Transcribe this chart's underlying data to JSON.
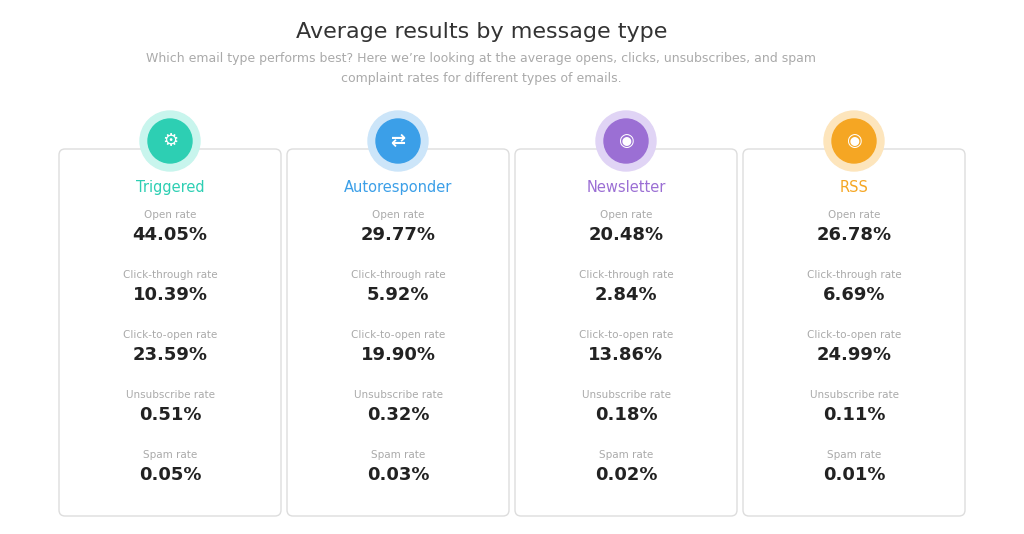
{
  "title": "Average results by message type",
  "subtitle": "Which email type performs best? Here we’re looking at the average opens, clicks, unsubscribes, and spam\ncomplaint rates for different types of emails.",
  "background_color": "#ffffff",
  "title_color": "#333333",
  "subtitle_color": "#aaaaaa",
  "cards": [
    {
      "name": "Triggered",
      "name_color": "#2dcfb3",
      "icon_bg": "#2dcfb3",
      "icon_halo": "#c8f5ed",
      "metrics": [
        {
          "label": "Open rate",
          "value": "44.05%"
        },
        {
          "label": "Click-through rate",
          "value": "10.39%"
        },
        {
          "label": "Click-to-open rate",
          "value": "23.59%"
        },
        {
          "label": "Unsubscribe rate",
          "value": "0.51%"
        },
        {
          "label": "Spam rate",
          "value": "0.05%"
        }
      ]
    },
    {
      "name": "Autoresponder",
      "name_color": "#3b9fe8",
      "icon_bg": "#3b9fe8",
      "icon_halo": "#cce5f9",
      "metrics": [
        {
          "label": "Open rate",
          "value": "29.77%"
        },
        {
          "label": "Click-through rate",
          "value": "5.92%"
        },
        {
          "label": "Click-to-open rate",
          "value": "19.90%"
        },
        {
          "label": "Unsubscribe rate",
          "value": "0.32%"
        },
        {
          "label": "Spam rate",
          "value": "0.03%"
        }
      ]
    },
    {
      "name": "Newsletter",
      "name_color": "#9b6fd4",
      "icon_bg": "#9b6fd4",
      "icon_halo": "#e0d4f5",
      "metrics": [
        {
          "label": "Open rate",
          "value": "20.48%"
        },
        {
          "label": "Click-through rate",
          "value": "2.84%"
        },
        {
          "label": "Click-to-open rate",
          "value": "13.86%"
        },
        {
          "label": "Unsubscribe rate",
          "value": "0.18%"
        },
        {
          "label": "Spam rate",
          "value": "0.02%"
        }
      ]
    },
    {
      "name": "RSS",
      "name_color": "#f5a623",
      "icon_bg": "#f5a623",
      "icon_halo": "#fde5bc",
      "metrics": [
        {
          "label": "Open rate",
          "value": "26.78%"
        },
        {
          "label": "Click-through rate",
          "value": "6.69%"
        },
        {
          "label": "Click-to-open rate",
          "value": "24.99%"
        },
        {
          "label": "Unsubscribe rate",
          "value": "0.11%"
        },
        {
          "label": "Spam rate",
          "value": "0.01%"
        }
      ]
    }
  ],
  "fig_width": 10.24,
  "fig_height": 5.34,
  "dpi": 100
}
